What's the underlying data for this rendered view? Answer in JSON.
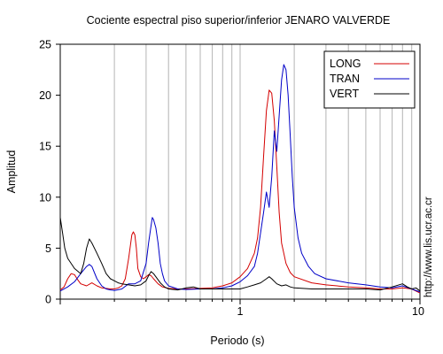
{
  "chart_data": {
    "type": "line",
    "title": "Cociente espectral piso superior/inferior  JENARO VALVERDE",
    "xlabel": "Periodo (s)",
    "ylabel": "Amplitud",
    "xscale": "log",
    "xlim": [
      0.1,
      10
    ],
    "ylim": [
      0,
      25
    ],
    "x_tick_labels": [
      "1",
      "10"
    ],
    "y_ticks": [
      0,
      5,
      10,
      15,
      20,
      25
    ],
    "grid": "vertical log gridlines",
    "legend_position": "top-right",
    "watermark": "http://www.lis.ucr.ac.cr",
    "series": [
      {
        "name": "LONG",
        "color": "#d40000",
        "points": [
          [
            0.1,
            0.9
          ],
          [
            0.105,
            1.2
          ],
          [
            0.11,
            2.0
          ],
          [
            0.115,
            2.5
          ],
          [
            0.12,
            2.4
          ],
          [
            0.125,
            1.9
          ],
          [
            0.13,
            1.5
          ],
          [
            0.14,
            1.3
          ],
          [
            0.15,
            1.6
          ],
          [
            0.16,
            1.3
          ],
          [
            0.17,
            1.1
          ],
          [
            0.18,
            1.05
          ],
          [
            0.19,
            1.0
          ],
          [
            0.2,
            1.0
          ],
          [
            0.21,
            1.1
          ],
          [
            0.22,
            1.3
          ],
          [
            0.23,
            2.0
          ],
          [
            0.24,
            4.0
          ],
          [
            0.25,
            6.3
          ],
          [
            0.255,
            6.6
          ],
          [
            0.26,
            6.3
          ],
          [
            0.265,
            5.0
          ],
          [
            0.27,
            3.0
          ],
          [
            0.28,
            2.2
          ],
          [
            0.29,
            2.0
          ],
          [
            0.3,
            2.2
          ],
          [
            0.31,
            2.4
          ],
          [
            0.32,
            2.3
          ],
          [
            0.33,
            2.0
          ],
          [
            0.35,
            1.5
          ],
          [
            0.37,
            1.2
          ],
          [
            0.4,
            1.05
          ],
          [
            0.45,
            1.0
          ],
          [
            0.5,
            1.0
          ],
          [
            0.6,
            1.05
          ],
          [
            0.7,
            1.1
          ],
          [
            0.8,
            1.3
          ],
          [
            0.9,
            1.6
          ],
          [
            1.0,
            2.2
          ],
          [
            1.1,
            3.0
          ],
          [
            1.2,
            4.5
          ],
          [
            1.25,
            6.0
          ],
          [
            1.3,
            9.0
          ],
          [
            1.35,
            14.0
          ],
          [
            1.4,
            18.5
          ],
          [
            1.45,
            20.5
          ],
          [
            1.5,
            20.2
          ],
          [
            1.55,
            17.5
          ],
          [
            1.6,
            13.0
          ],
          [
            1.65,
            8.5
          ],
          [
            1.7,
            5.5
          ],
          [
            1.8,
            3.5
          ],
          [
            1.9,
            2.6
          ],
          [
            2.0,
            2.2
          ],
          [
            2.5,
            1.6
          ],
          [
            3.0,
            1.4
          ],
          [
            4.0,
            1.2
          ],
          [
            5.0,
            1.1
          ],
          [
            6.0,
            1.0
          ],
          [
            7.0,
            1.0
          ],
          [
            8.0,
            1.1
          ],
          [
            9.0,
            1.0
          ],
          [
            10.0,
            0.6
          ]
        ]
      },
      {
        "name": "TRAN",
        "color": "#0000c8",
        "points": [
          [
            0.1,
            0.8
          ],
          [
            0.11,
            1.2
          ],
          [
            0.12,
            1.7
          ],
          [
            0.13,
            2.5
          ],
          [
            0.14,
            3.2
          ],
          [
            0.145,
            3.4
          ],
          [
            0.15,
            3.2
          ],
          [
            0.16,
            2.0
          ],
          [
            0.17,
            1.3
          ],
          [
            0.18,
            1.0
          ],
          [
            0.19,
            0.9
          ],
          [
            0.2,
            0.85
          ],
          [
            0.22,
            1.0
          ],
          [
            0.24,
            1.5
          ],
          [
            0.26,
            1.5
          ],
          [
            0.28,
            1.8
          ],
          [
            0.3,
            3.5
          ],
          [
            0.31,
            5.5
          ],
          [
            0.32,
            7.2
          ],
          [
            0.325,
            8.0
          ],
          [
            0.33,
            7.8
          ],
          [
            0.34,
            7.0
          ],
          [
            0.35,
            5.5
          ],
          [
            0.36,
            3.5
          ],
          [
            0.37,
            2.5
          ],
          [
            0.38,
            1.8
          ],
          [
            0.4,
            1.3
          ],
          [
            0.45,
            1.0
          ],
          [
            0.5,
            0.95
          ],
          [
            0.6,
            1.0
          ],
          [
            0.7,
            1.0
          ],
          [
            0.8,
            1.1
          ],
          [
            0.9,
            1.3
          ],
          [
            1.0,
            1.7
          ],
          [
            1.1,
            2.3
          ],
          [
            1.2,
            3.2
          ],
          [
            1.25,
            4.5
          ],
          [
            1.3,
            6.5
          ],
          [
            1.35,
            8.5
          ],
          [
            1.4,
            10.5
          ],
          [
            1.45,
            9.0
          ],
          [
            1.5,
            12.0
          ],
          [
            1.55,
            16.5
          ],
          [
            1.6,
            14.5
          ],
          [
            1.65,
            18.0
          ],
          [
            1.7,
            21.5
          ],
          [
            1.75,
            23.0
          ],
          [
            1.8,
            22.5
          ],
          [
            1.85,
            20.0
          ],
          [
            1.9,
            16.0
          ],
          [
            1.95,
            12.0
          ],
          [
            2.0,
            9.0
          ],
          [
            2.1,
            6.0
          ],
          [
            2.2,
            4.5
          ],
          [
            2.4,
            3.2
          ],
          [
            2.6,
            2.5
          ],
          [
            3.0,
            2.0
          ],
          [
            4.0,
            1.6
          ],
          [
            5.0,
            1.4
          ],
          [
            6.0,
            1.2
          ],
          [
            7.0,
            1.1
          ],
          [
            8.0,
            1.3
          ],
          [
            9.0,
            1.0
          ],
          [
            10.0,
            0.7
          ]
        ]
      },
      {
        "name": "VERT",
        "color": "#000000",
        "points": [
          [
            0.1,
            8.0
          ],
          [
            0.103,
            6.5
          ],
          [
            0.106,
            5.0
          ],
          [
            0.11,
            4.0
          ],
          [
            0.12,
            3.0
          ],
          [
            0.13,
            2.5
          ],
          [
            0.135,
            3.5
          ],
          [
            0.14,
            5.0
          ],
          [
            0.145,
            5.9
          ],
          [
            0.15,
            5.5
          ],
          [
            0.16,
            4.5
          ],
          [
            0.17,
            3.5
          ],
          [
            0.18,
            2.5
          ],
          [
            0.19,
            2.0
          ],
          [
            0.2,
            1.8
          ],
          [
            0.21,
            1.6
          ],
          [
            0.22,
            1.5
          ],
          [
            0.24,
            1.4
          ],
          [
            0.26,
            1.3
          ],
          [
            0.28,
            1.4
          ],
          [
            0.3,
            1.8
          ],
          [
            0.31,
            2.3
          ],
          [
            0.32,
            2.7
          ],
          [
            0.33,
            2.5
          ],
          [
            0.34,
            2.2
          ],
          [
            0.36,
            1.6
          ],
          [
            0.38,
            1.2
          ],
          [
            0.4,
            1.0
          ],
          [
            0.45,
            0.9
          ],
          [
            0.5,
            1.1
          ],
          [
            0.55,
            1.2
          ],
          [
            0.6,
            1.0
          ],
          [
            0.7,
            1.0
          ],
          [
            0.8,
            1.0
          ],
          [
            0.9,
            1.0
          ],
          [
            1.0,
            1.0
          ],
          [
            1.1,
            1.2
          ],
          [
            1.2,
            1.4
          ],
          [
            1.3,
            1.6
          ],
          [
            1.4,
            2.0
          ],
          [
            1.45,
            2.2
          ],
          [
            1.5,
            2.0
          ],
          [
            1.6,
            1.5
          ],
          [
            1.7,
            1.3
          ],
          [
            1.8,
            1.4
          ],
          [
            1.9,
            1.2
          ],
          [
            2.0,
            1.1
          ],
          [
            2.5,
            1.0
          ],
          [
            3.0,
            1.0
          ],
          [
            4.0,
            1.0
          ],
          [
            5.0,
            1.0
          ],
          [
            6.0,
            0.9
          ],
          [
            7.0,
            1.2
          ],
          [
            8.0,
            1.5
          ],
          [
            8.5,
            1.2
          ],
          [
            9.0,
            1.0
          ],
          [
            9.5,
            1.1
          ],
          [
            10.0,
            0.8
          ]
        ]
      }
    ]
  }
}
